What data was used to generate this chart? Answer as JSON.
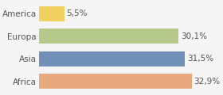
{
  "categories": [
    "America",
    "Europa",
    "Asia",
    "Africa"
  ],
  "values": [
    5.5,
    30.1,
    31.5,
    32.9
  ],
  "labels": [
    "5,5%",
    "30,1%",
    "31,5%",
    "32,9%"
  ],
  "bar_colors": [
    "#f0d060",
    "#b5c98a",
    "#7090b8",
    "#e8a97e"
  ],
  "background_color": "#f5f5f5",
  "xlim": [
    0,
    38
  ],
  "bar_height": 0.65,
  "label_fontsize": 7.5,
  "tick_fontsize": 7.5
}
